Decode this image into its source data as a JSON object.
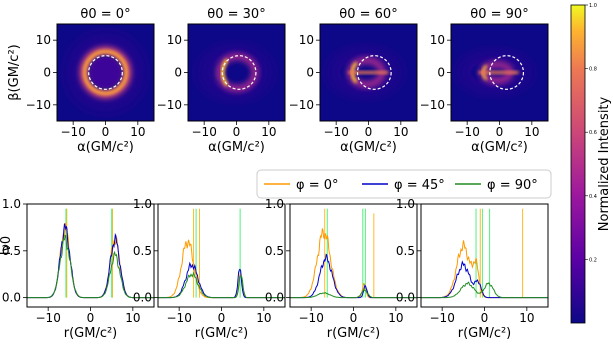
{
  "chart_data": [
    {
      "type": "heatmap",
      "panel": "image-1",
      "title": "θ0 = 0°",
      "xlabel": "α(GM/c²)",
      "ylabel": "β(GM/c²)",
      "xlim": [
        -15,
        15
      ],
      "ylim": [
        -15,
        15
      ],
      "xticks": [
        -10,
        0,
        10
      ],
      "yticks": [
        -10,
        0,
        10
      ],
      "photon_ring_radius": 5.2,
      "photon_ring_center": [
        0,
        0
      ]
    },
    {
      "type": "heatmap",
      "panel": "image-2",
      "title": "θ0 = 30°",
      "xlabel": "α(GM/c²)",
      "xlim": [
        -15,
        15
      ],
      "ylim": [
        -15,
        15
      ],
      "xticks": [
        -10,
        0,
        10
      ],
      "yticks": [
        -10,
        0,
        10
      ],
      "photon_ring_radius": 5.2,
      "photon_ring_center": [
        0.8,
        0
      ]
    },
    {
      "type": "heatmap",
      "panel": "image-3",
      "title": "θ0 = 60°",
      "xlabel": "α(GM/c²)",
      "xlim": [
        -15,
        15
      ],
      "ylim": [
        -15,
        15
      ],
      "xticks": [
        -10,
        0,
        10
      ],
      "yticks": [
        -10,
        0,
        10
      ],
      "photon_ring_radius": 5.2,
      "photon_ring_center": [
        1.8,
        0
      ]
    },
    {
      "type": "heatmap",
      "panel": "image-4",
      "title": "θ0 = 90°",
      "xlabel": "α(GM/c²)",
      "xlim": [
        -15,
        15
      ],
      "ylim": [
        -15,
        15
      ],
      "xticks": [
        -10,
        0,
        10
      ],
      "yticks": [
        -10,
        0,
        10
      ],
      "photon_ring_radius": 5.2,
      "photon_ring_center": [
        2.2,
        0
      ]
    },
    {
      "type": "colorbar",
      "label": "Normalized Intensity",
      "range": [
        0,
        1
      ],
      "ticks": [
        "0.2",
        "0.4",
        "0.6",
        "0.8",
        "1.0"
      ],
      "colormap": "plasma"
    },
    {
      "type": "line",
      "panel": "profile-1",
      "ylabel": "Iν0",
      "xlabel": "r(GM/c²)",
      "xlim": [
        -15,
        15
      ],
      "ylim": [
        -0.1,
        1.0
      ],
      "xticks": [
        -10,
        0,
        10
      ],
      "yticks": [
        0.0,
        0.5,
        1.0
      ],
      "series": [
        {
          "name": "φ = 0°",
          "color": "#ff9900",
          "peaks": [
            [
              -6,
              0.74,
              1.6
            ],
            [
              5.8,
              0.62,
              1.6
            ]
          ],
          "spikes": [
            [
              -5.6,
              0.95
            ],
            [
              5.2,
              0.95
            ]
          ]
        },
        {
          "name": "φ = 45°",
          "color": "#0000cc",
          "peaks": [
            [
              -6,
              0.74,
              1.6
            ],
            [
              5.8,
              0.62,
              1.6
            ]
          ],
          "spikes": []
        },
        {
          "name": "φ = 90°",
          "color": "#228b22",
          "peaks": [
            [
              -6,
              0.62,
              1.7
            ],
            [
              5.8,
              0.45,
              1.6
            ]
          ],
          "spikes": [
            [
              -5.8,
              0.95
            ],
            [
              5.0,
              0.95
            ]
          ]
        }
      ]
    },
    {
      "type": "line",
      "panel": "profile-2",
      "xlabel": "r(GM/c²)",
      "xlim": [
        -15,
        15
      ],
      "ylim": [
        -0.1,
        1.0
      ],
      "xticks": [
        -10,
        0,
        10
      ],
      "yticks": [
        0.0,
        0.5,
        1.0
      ],
      "series": [
        {
          "name": "φ = 0°",
          "color": "#ff9900",
          "peaks": [
            [
              -8,
              0.6,
              2.0
            ],
            [
              4.5,
              0.25,
              0.6
            ]
          ],
          "spikes": [
            [
              -5.2,
              0.95
            ],
            [
              -6.6,
              0.95
            ]
          ]
        },
        {
          "name": "φ = 45°",
          "color": "#0000cc",
          "peaks": [
            [
              -7,
              0.35,
              2.0
            ],
            [
              4.3,
              0.3,
              0.6
            ]
          ],
          "spikes": []
        },
        {
          "name": "φ = 90°",
          "color": "#228b22",
          "peaks": [
            [
              -7,
              0.25,
              2.0
            ],
            [
              4.6,
              0.25,
              0.6
            ]
          ],
          "spikes": [
            [
              -6.0,
              0.95
            ],
            [
              4.4,
              0.95
            ]
          ]
        }
      ]
    },
    {
      "type": "line",
      "panel": "profile-3",
      "xlabel": "r(GM/c²)",
      "xlim": [
        -15,
        15
      ],
      "ylim": [
        -0.1,
        1.0
      ],
      "xticks": [
        -10,
        0,
        10
      ],
      "yticks": [
        0.0,
        0.5,
        1.0
      ],
      "series": [
        {
          "name": "φ = 0°",
          "color": "#ff9900",
          "peaks": [
            [
              -7,
              0.7,
              2.2
            ],
            [
              2.5,
              0.15,
              0.6
            ]
          ],
          "spikes": [
            [
              -6.8,
              0.95
            ],
            [
              4.8,
              0.9
            ]
          ]
        },
        {
          "name": "φ = 45°",
          "color": "#0000cc",
          "peaks": [
            [
              -6.5,
              0.42,
              2.0
            ],
            [
              2.8,
              0.12,
              0.6
            ]
          ],
          "spikes": []
        },
        {
          "name": "φ = 90°",
          "color": "#228b22",
          "peaks": [
            [
              -7,
              0.05,
              2.0
            ],
            [
              2.6,
              0.08,
              1.0
            ]
          ],
          "spikes": [
            [
              -6.2,
              0.95
            ],
            [
              2.2,
              0.95
            ],
            [
              2.8,
              0.95
            ]
          ]
        }
      ]
    },
    {
      "type": "line",
      "panel": "profile-4",
      "xlabel": "r(GM/c²)",
      "xlim": [
        -15,
        15
      ],
      "ylim": [
        -0.1,
        1.0
      ],
      "xticks": [
        -10,
        0,
        10
      ],
      "yticks": [
        0.0,
        0.5,
        1.0
      ],
      "series": [
        {
          "name": "φ = 0°",
          "color": "#ff9900",
          "peaks": [
            [
              -5,
              0.55,
              2.2
            ],
            [
              -2,
              0.3,
              1.0
            ]
          ],
          "spikes": [
            [
              -1.0,
              0.95
            ],
            [
              9.0,
              0.95
            ]
          ]
        },
        {
          "name": "φ = 45°",
          "color": "#0000cc",
          "peaks": [
            [
              -5,
              0.35,
              2.2
            ],
            [
              -1.5,
              0.15,
              1.0
            ]
          ],
          "spikes": []
        },
        {
          "name": "φ = 90°",
          "color": "#228b22",
          "peaks": [
            [
              -4,
              0.15,
              2.2
            ],
            [
              1,
              0.15,
              1.5
            ]
          ],
          "spikes": [
            [
              -2.0,
              0.95
            ],
            [
              -0.5,
              0.95
            ],
            [
              1.2,
              0.95
            ]
          ]
        }
      ]
    }
  ],
  "legend": {
    "entries": [
      {
        "label": "φ = 0°",
        "color": "#ff9900"
      },
      {
        "label": "φ = 45°",
        "color": "#0000cc"
      },
      {
        "label": "φ = 90°",
        "color": "#228b22"
      }
    ]
  }
}
